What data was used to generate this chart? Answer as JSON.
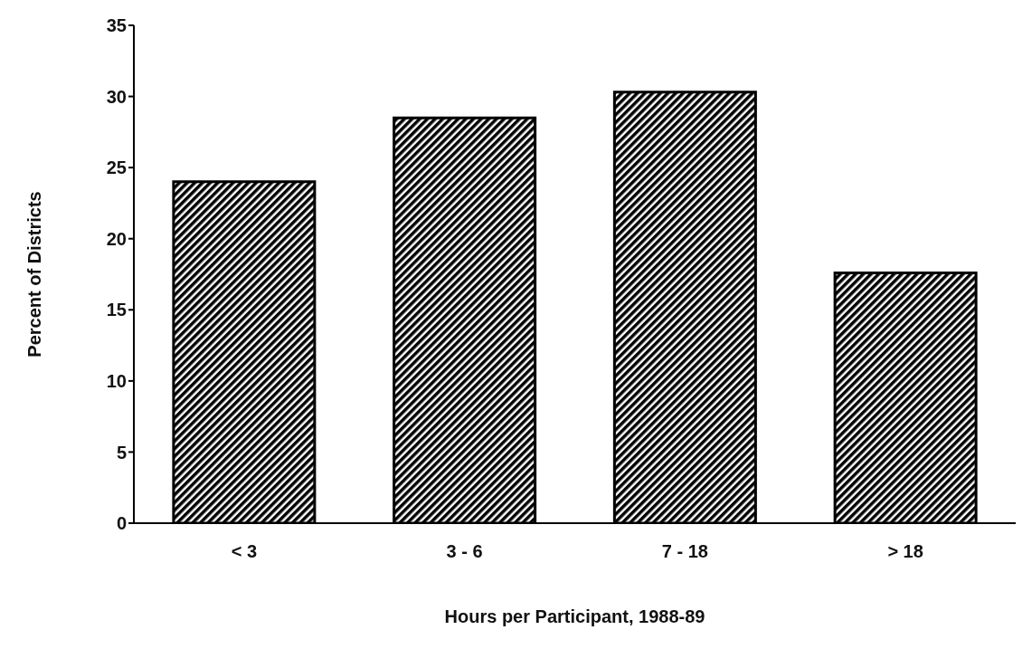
{
  "chart_data": {
    "type": "bar",
    "xlabel": "Hours per Participant, 1988-89",
    "ylabel": "Percent of Districts",
    "categories": [
      "< 3",
      "3 - 6",
      "7 - 18",
      "> 18"
    ],
    "values": [
      24,
      28.5,
      30.3,
      17.6
    ],
    "color": "#000000",
    "ylim": [
      0,
      35
    ],
    "yticks": [
      0,
      5,
      10,
      15,
      20,
      25,
      30,
      35
    ],
    "grid": false
  }
}
